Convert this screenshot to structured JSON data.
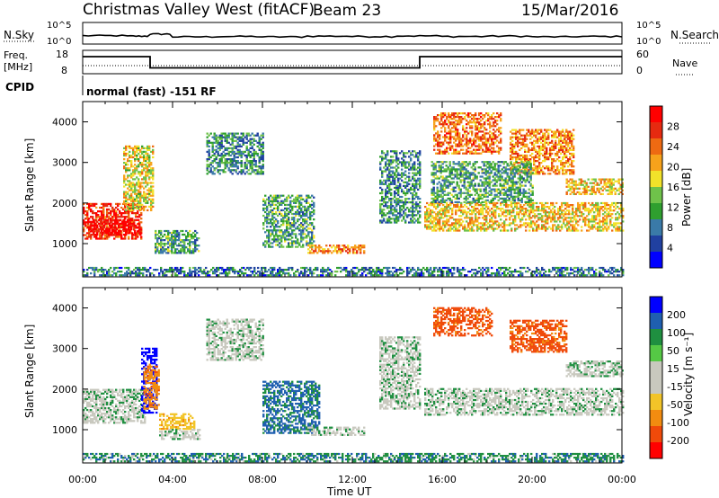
{
  "header": {
    "station": "Christmas Valley West (fitACF)",
    "beam": "Beam 23",
    "date": "15/Mar/2016"
  },
  "strip_panels": {
    "nsky_label": "N.Sky",
    "nsky_ticks": [
      "10^5",
      "10^0"
    ],
    "nsearch_label": "N.Search",
    "nsearch_ticks": [
      "10^5",
      "10^0"
    ],
    "freq_label_top": "Freq.",
    "freq_label_unit": "[MHz]",
    "freq_ticks": [
      "18",
      "8"
    ],
    "nave_label": "Nave",
    "nave_ticks": [
      "60",
      "0"
    ],
    "cpid_label": "CPID",
    "cpid_text": "normal (fast) -151 RF"
  },
  "colors": {
    "power_scale": [
      "#0000ff",
      "#2040a0",
      "#3a7aa8",
      "#2f9f2f",
      "#6fc24a",
      "#f2e22a",
      "#f7a21b",
      "#ee6a12",
      "#e62a10",
      "#ff0000"
    ],
    "velocity_scale": [
      "#0000ff",
      "#1f5fb0",
      "#1f8f40",
      "#55c845",
      "#c8c8be",
      "#c8c8be",
      "#f2c428",
      "#f28c10",
      "#f04a0a",
      "#ff0000"
    ],
    "ground_scatter": "#bcbcb4"
  },
  "chart_data": [
    {
      "type": "line",
      "panel": "N.Sky / N.Search",
      "y_scale": "log",
      "ylim_left": [
        1,
        100000
      ],
      "note_values_estimated": true,
      "series": [
        {
          "name": "N.Sky",
          "x": [
            "00:00",
            "02:00",
            "03:00",
            "04:00",
            "06:00",
            "08:00",
            "10:00",
            "12:00",
            "14:00",
            "16:00",
            "18:00",
            "20:00",
            "22:00",
            "24:00"
          ],
          "values": [
            80,
            60,
            200,
            40,
            50,
            40,
            60,
            50,
            70,
            50,
            60,
            40,
            50,
            40
          ]
        }
      ]
    },
    {
      "type": "line",
      "panel": "Freq / Nave",
      "ylim_left": [
        8,
        18
      ],
      "ylim_right": [
        0,
        60
      ],
      "series": [
        {
          "name": "Freq.",
          "x": [
            "00:00",
            "03:00",
            "03:00",
            "15:00",
            "15:00",
            "24:00"
          ],
          "values": [
            15.5,
            15.5,
            10.3,
            10.3,
            15.5,
            15.5
          ]
        },
        {
          "name": "Nave",
          "x": [
            "00:00",
            "24:00"
          ],
          "values": [
            20,
            20
          ]
        }
      ]
    },
    {
      "type": "heatmap",
      "panel": "Power",
      "ylabel": "Slant Range [km]",
      "xlabel": "Time UT",
      "ylim": [
        180,
        4500
      ],
      "yticks": [
        1000,
        2000,
        3000,
        4000
      ],
      "xticks": [
        "00:00",
        "04:00",
        "08:00",
        "12:00",
        "16:00",
        "20:00",
        "00:00"
      ],
      "colorbar_label": "Power [dB]",
      "colorbar_ticks": [
        4,
        8,
        12,
        16,
        20,
        24,
        28
      ],
      "regions": [
        {
          "t": [
            0.0,
            2.6
          ],
          "r": [
            1100,
            2000
          ],
          "level": 0.85
        },
        {
          "t": [
            0.2,
            2.6
          ],
          "r": [
            1200,
            1600
          ],
          "level": 1.0
        },
        {
          "t": [
            1.8,
            3.1
          ],
          "r": [
            1800,
            3400
          ],
          "level": 0.55
        },
        {
          "t": [
            3.2,
            5.2
          ],
          "r": [
            750,
            1300
          ],
          "level": 0.35
        },
        {
          "t": [
            5.5,
            8.0
          ],
          "r": [
            2700,
            3700
          ],
          "level": 0.3
        },
        {
          "t": [
            8.0,
            10.3
          ],
          "r": [
            900,
            2200
          ],
          "level": 0.35
        },
        {
          "t": [
            10.0,
            12.5
          ],
          "r": [
            750,
            950
          ],
          "level": 0.7
        },
        {
          "t": [
            13.2,
            15.0
          ],
          "r": [
            1500,
            3300
          ],
          "level": 0.3
        },
        {
          "t": [
            15.2,
            24.0
          ],
          "r": [
            1300,
            2000
          ],
          "level": 0.6
        },
        {
          "t": [
            15.6,
            18.6
          ],
          "r": [
            3200,
            4200
          ],
          "level": 0.75
        },
        {
          "t": [
            19.0,
            21.8
          ],
          "r": [
            2700,
            3800
          ],
          "level": 0.7
        },
        {
          "t": [
            21.5,
            24.0
          ],
          "r": [
            2200,
            2600
          ],
          "level": 0.6
        },
        {
          "t": [
            15.5,
            20.0
          ],
          "r": [
            2000,
            3000
          ],
          "level": 0.35
        },
        {
          "t": [
            0.0,
            24.0
          ],
          "r": [
            200,
            400
          ],
          "level": 0.25
        }
      ]
    },
    {
      "type": "heatmap",
      "panel": "Velocity",
      "ylabel": "Slant Range [km]",
      "xlabel": "Time UT",
      "ylim": [
        180,
        4500
      ],
      "yticks": [
        1000,
        2000,
        3000,
        4000
      ],
      "xticks": [
        "00:00",
        "04:00",
        "08:00",
        "12:00",
        "16:00",
        "20:00",
        "00:00"
      ],
      "colorbar_label": "Velocity [m s⁻¹]",
      "colorbar_ticks": [
        200,
        100,
        50,
        15,
        -15,
        -50,
        -100,
        -200
      ],
      "regions": [
        {
          "t": [
            0.0,
            2.8
          ],
          "r": [
            1150,
            2000
          ],
          "vel": 0
        },
        {
          "t": [
            2.6,
            3.3
          ],
          "r": [
            1400,
            3000
          ],
          "vel": 220
        },
        {
          "t": [
            2.7,
            3.4
          ],
          "r": [
            1500,
            2600
          ],
          "vel": -180
        },
        {
          "t": [
            3.4,
            5.0
          ],
          "r": [
            1000,
            1400
          ],
          "vel": -80
        },
        {
          "t": [
            3.4,
            5.2
          ],
          "r": [
            750,
            1000
          ],
          "vel": 0
        },
        {
          "t": [
            5.5,
            8.0
          ],
          "r": [
            2700,
            3700
          ],
          "vel": 0
        },
        {
          "t": [
            8.0,
            10.5
          ],
          "r": [
            900,
            2200
          ],
          "vel": 60
        },
        {
          "t": [
            10.0,
            12.5
          ],
          "r": [
            850,
            1050
          ],
          "vel": 0
        },
        {
          "t": [
            13.2,
            15.0
          ],
          "r": [
            1500,
            3300
          ],
          "vel": 0
        },
        {
          "t": [
            15.2,
            24.0
          ],
          "r": [
            1350,
            2000
          ],
          "vel": 0
        },
        {
          "t": [
            15.6,
            18.2
          ],
          "r": [
            3300,
            4000
          ],
          "vel": -220
        },
        {
          "t": [
            19.0,
            21.5
          ],
          "r": [
            2900,
            3700
          ],
          "vel": -220
        },
        {
          "t": [
            21.5,
            24.0
          ],
          "r": [
            2300,
            2700
          ],
          "vel": 0
        },
        {
          "t": [
            0.0,
            24.0
          ],
          "r": [
            200,
            400
          ],
          "vel": 40
        }
      ]
    }
  ]
}
